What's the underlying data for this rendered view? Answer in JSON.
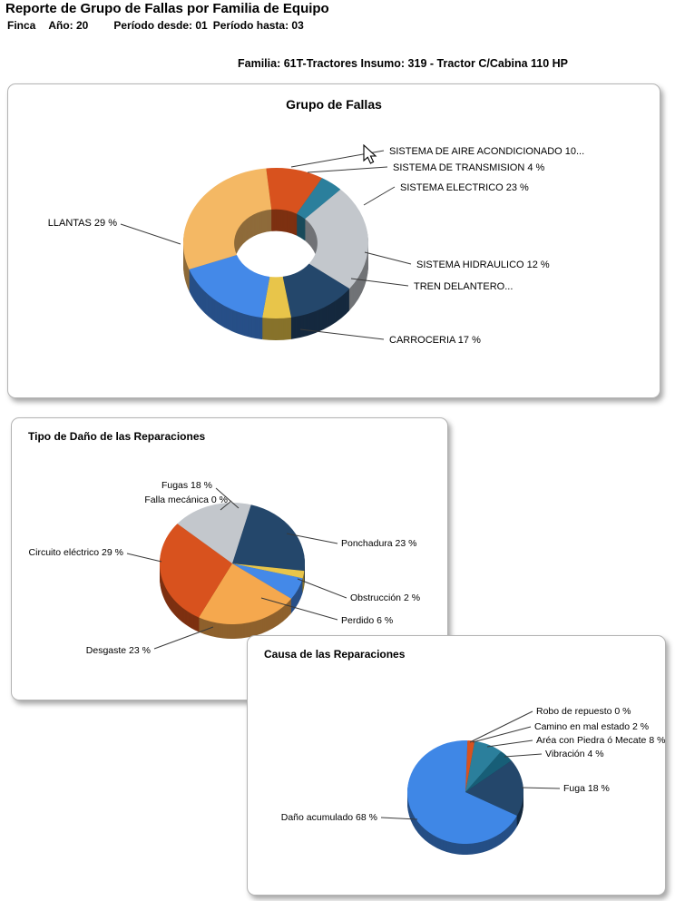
{
  "header": {
    "title": "Reporte de Grupo de Fallas por Familia de Equipo",
    "finca_label": "Finca",
    "year": "Año: 20",
    "period_from": "Período desde: 01",
    "period_to": "Período hasta: 03",
    "family_line": "Familia: 61T-Tractores Insumo: 319 - Tractor C/Cabina 110 HP"
  },
  "chart_data": [
    {
      "type": "pie",
      "variant": "3d-donut",
      "title": "Grupo de Fallas",
      "unit": "%",
      "legend_position": "none",
      "slices": [
        {
          "name": "SISTEMA DE AIRE ACONDICIONADO",
          "value": 10,
          "label": "SISTEMA DE AIRE ACONDICIONADO 10...",
          "color": "#D8521E"
        },
        {
          "name": "SISTEMA DE TRANSMISION",
          "value": 4,
          "label": "SISTEMA DE TRANSMISION 4 %",
          "color": "#2B7F9C"
        },
        {
          "name": "SISTEMA ELECTRICO",
          "value": 23,
          "label": "SISTEMA ELECTRICO 23 %",
          "color": "#C3C7CC"
        },
        {
          "name": "SISTEMA HIDRAULICO",
          "value": 12,
          "label": "SISTEMA HIDRAULICO 12 %",
          "color": "#24476B"
        },
        {
          "name": "TREN DELANTERO",
          "value": 5,
          "label": "TREN DELANTERO...",
          "color": "#E8C54A"
        },
        {
          "name": "CARROCERIA",
          "value": 17,
          "label": "CARROCERIA 17 %",
          "color": "#4489E8"
        },
        {
          "name": "LLANTAS",
          "value": 29,
          "label": "LLANTAS 29 %",
          "color": "#F4B864"
        }
      ]
    },
    {
      "type": "pie",
      "variant": "3d-pie",
      "title": "Tipo de Daño de las Reparaciones",
      "unit": "%",
      "legend_position": "none",
      "slices": [
        {
          "name": "Ponchadura",
          "value": 23,
          "label": "Ponchadura 23 %",
          "color": "#24476B"
        },
        {
          "name": "Obstrucción",
          "value": 2,
          "label": "Obstrucción 2 %",
          "color": "#E8C54A"
        },
        {
          "name": "Perdido",
          "value": 6,
          "label": "Perdido 6 %",
          "color": "#4489E8"
        },
        {
          "name": "Desgaste",
          "value": 23,
          "label": "Desgaste 23 %",
          "color": "#F5A84E"
        },
        {
          "name": "Circuito eléctrico",
          "value": 29,
          "label": "Circuito eléctrico 29 %",
          "color": "#D8521E"
        },
        {
          "name": "Falla mecánica",
          "value": 0,
          "label": "Falla mecánica 0 %",
          "color": "#9E9E9E"
        },
        {
          "name": "Fugas",
          "value": 18,
          "label": "Fugas 18 %",
          "color": "#C3C7CC"
        }
      ]
    },
    {
      "type": "pie",
      "variant": "3d-pie",
      "title": "Causa de las Reparaciones",
      "unit": "%",
      "legend_position": "none",
      "slices": [
        {
          "name": "Robo de repuesto",
          "value": 0,
          "label": "Robo de repuesto 0 %",
          "color": "#9E9E9E"
        },
        {
          "name": "Camino en mal estado",
          "value": 2,
          "label": "Camino en mal estado 2 %",
          "color": "#D8521E"
        },
        {
          "name": "Aréa con Piedra ó Mecate",
          "value": 8,
          "label": "Aréa con Piedra ó Mecate 8 %",
          "color": "#2B7F9C"
        },
        {
          "name": "Vibración",
          "value": 4,
          "label": "Vibración 4 %",
          "color": "#175E77"
        },
        {
          "name": "Fuga",
          "value": 18,
          "label": "Fuga 18 %",
          "color": "#24476B"
        },
        {
          "name": "Daño acumulado",
          "value": 68,
          "label": "Daño acumulado 68 %",
          "color": "#3F87E6"
        }
      ]
    }
  ]
}
